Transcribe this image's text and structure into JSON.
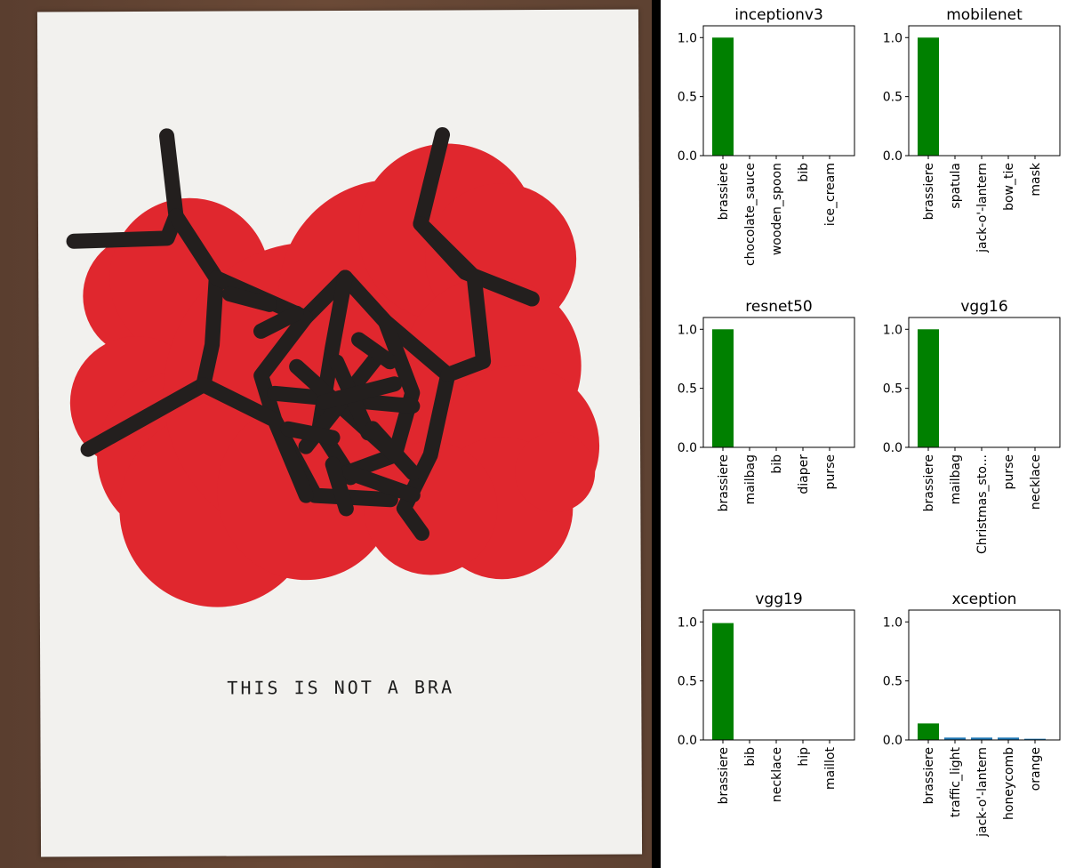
{
  "poster": {
    "caption": "THIS IS NOT A BRA",
    "colors": {
      "blob": "#e0272e",
      "ink": "#231f1e",
      "paper": "#f2f1ee"
    }
  },
  "colors": {
    "top_bar": "#008000",
    "other_bars": "#1f77b4"
  },
  "chart_data": [
    {
      "type": "bar",
      "title": "inceptionv3",
      "categories": [
        "brassiere",
        "chocolate_sauce",
        "wooden_spoon",
        "bib",
        "ice_cream"
      ],
      "values": [
        1.0,
        0.0,
        0.0,
        0.0,
        0.0
      ],
      "ylim": [
        0,
        1.1
      ],
      "yticks": [
        "0.0",
        "0.5",
        "1.0"
      ],
      "grid": false
    },
    {
      "type": "bar",
      "title": "mobilenet",
      "categories": [
        "brassiere",
        "spatula",
        "jack-o'-lantern",
        "bow_tie",
        "mask"
      ],
      "values": [
        1.0,
        0.0,
        0.0,
        0.0,
        0.0
      ],
      "ylim": [
        0,
        1.1
      ],
      "yticks": [
        "0.0",
        "0.5",
        "1.0"
      ],
      "grid": false
    },
    {
      "type": "bar",
      "title": "resnet50",
      "categories": [
        "brassiere",
        "mailbag",
        "bib",
        "diaper",
        "purse"
      ],
      "values": [
        1.0,
        0.0,
        0.0,
        0.0,
        0.0
      ],
      "ylim": [
        0,
        1.1
      ],
      "yticks": [
        "0.0",
        "0.5",
        "1.0"
      ],
      "grid": false
    },
    {
      "type": "bar",
      "title": "vgg16",
      "categories": [
        "brassiere",
        "mailbag",
        "Christmas_sto...",
        "purse",
        "necklace"
      ],
      "values": [
        1.0,
        0.0,
        0.0,
        0.0,
        0.0
      ],
      "ylim": [
        0,
        1.1
      ],
      "yticks": [
        "0.0",
        "0.5",
        "1.0"
      ],
      "grid": false
    },
    {
      "type": "bar",
      "title": "vgg19",
      "categories": [
        "brassiere",
        "bib",
        "necklace",
        "hip",
        "maillot"
      ],
      "values": [
        0.99,
        0.0,
        0.0,
        0.0,
        0.0
      ],
      "ylim": [
        0,
        1.1
      ],
      "yticks": [
        "0.0",
        "0.5",
        "1.0"
      ],
      "grid": false
    },
    {
      "type": "bar",
      "title": "xception",
      "categories": [
        "brassiere",
        "traffic_light",
        "jack-o'-lantern",
        "honeycomb",
        "orange"
      ],
      "values": [
        0.14,
        0.02,
        0.02,
        0.02,
        0.01
      ],
      "ylim": [
        0,
        1.1
      ],
      "yticks": [
        "0.0",
        "0.5",
        "1.0"
      ],
      "grid": false
    }
  ]
}
